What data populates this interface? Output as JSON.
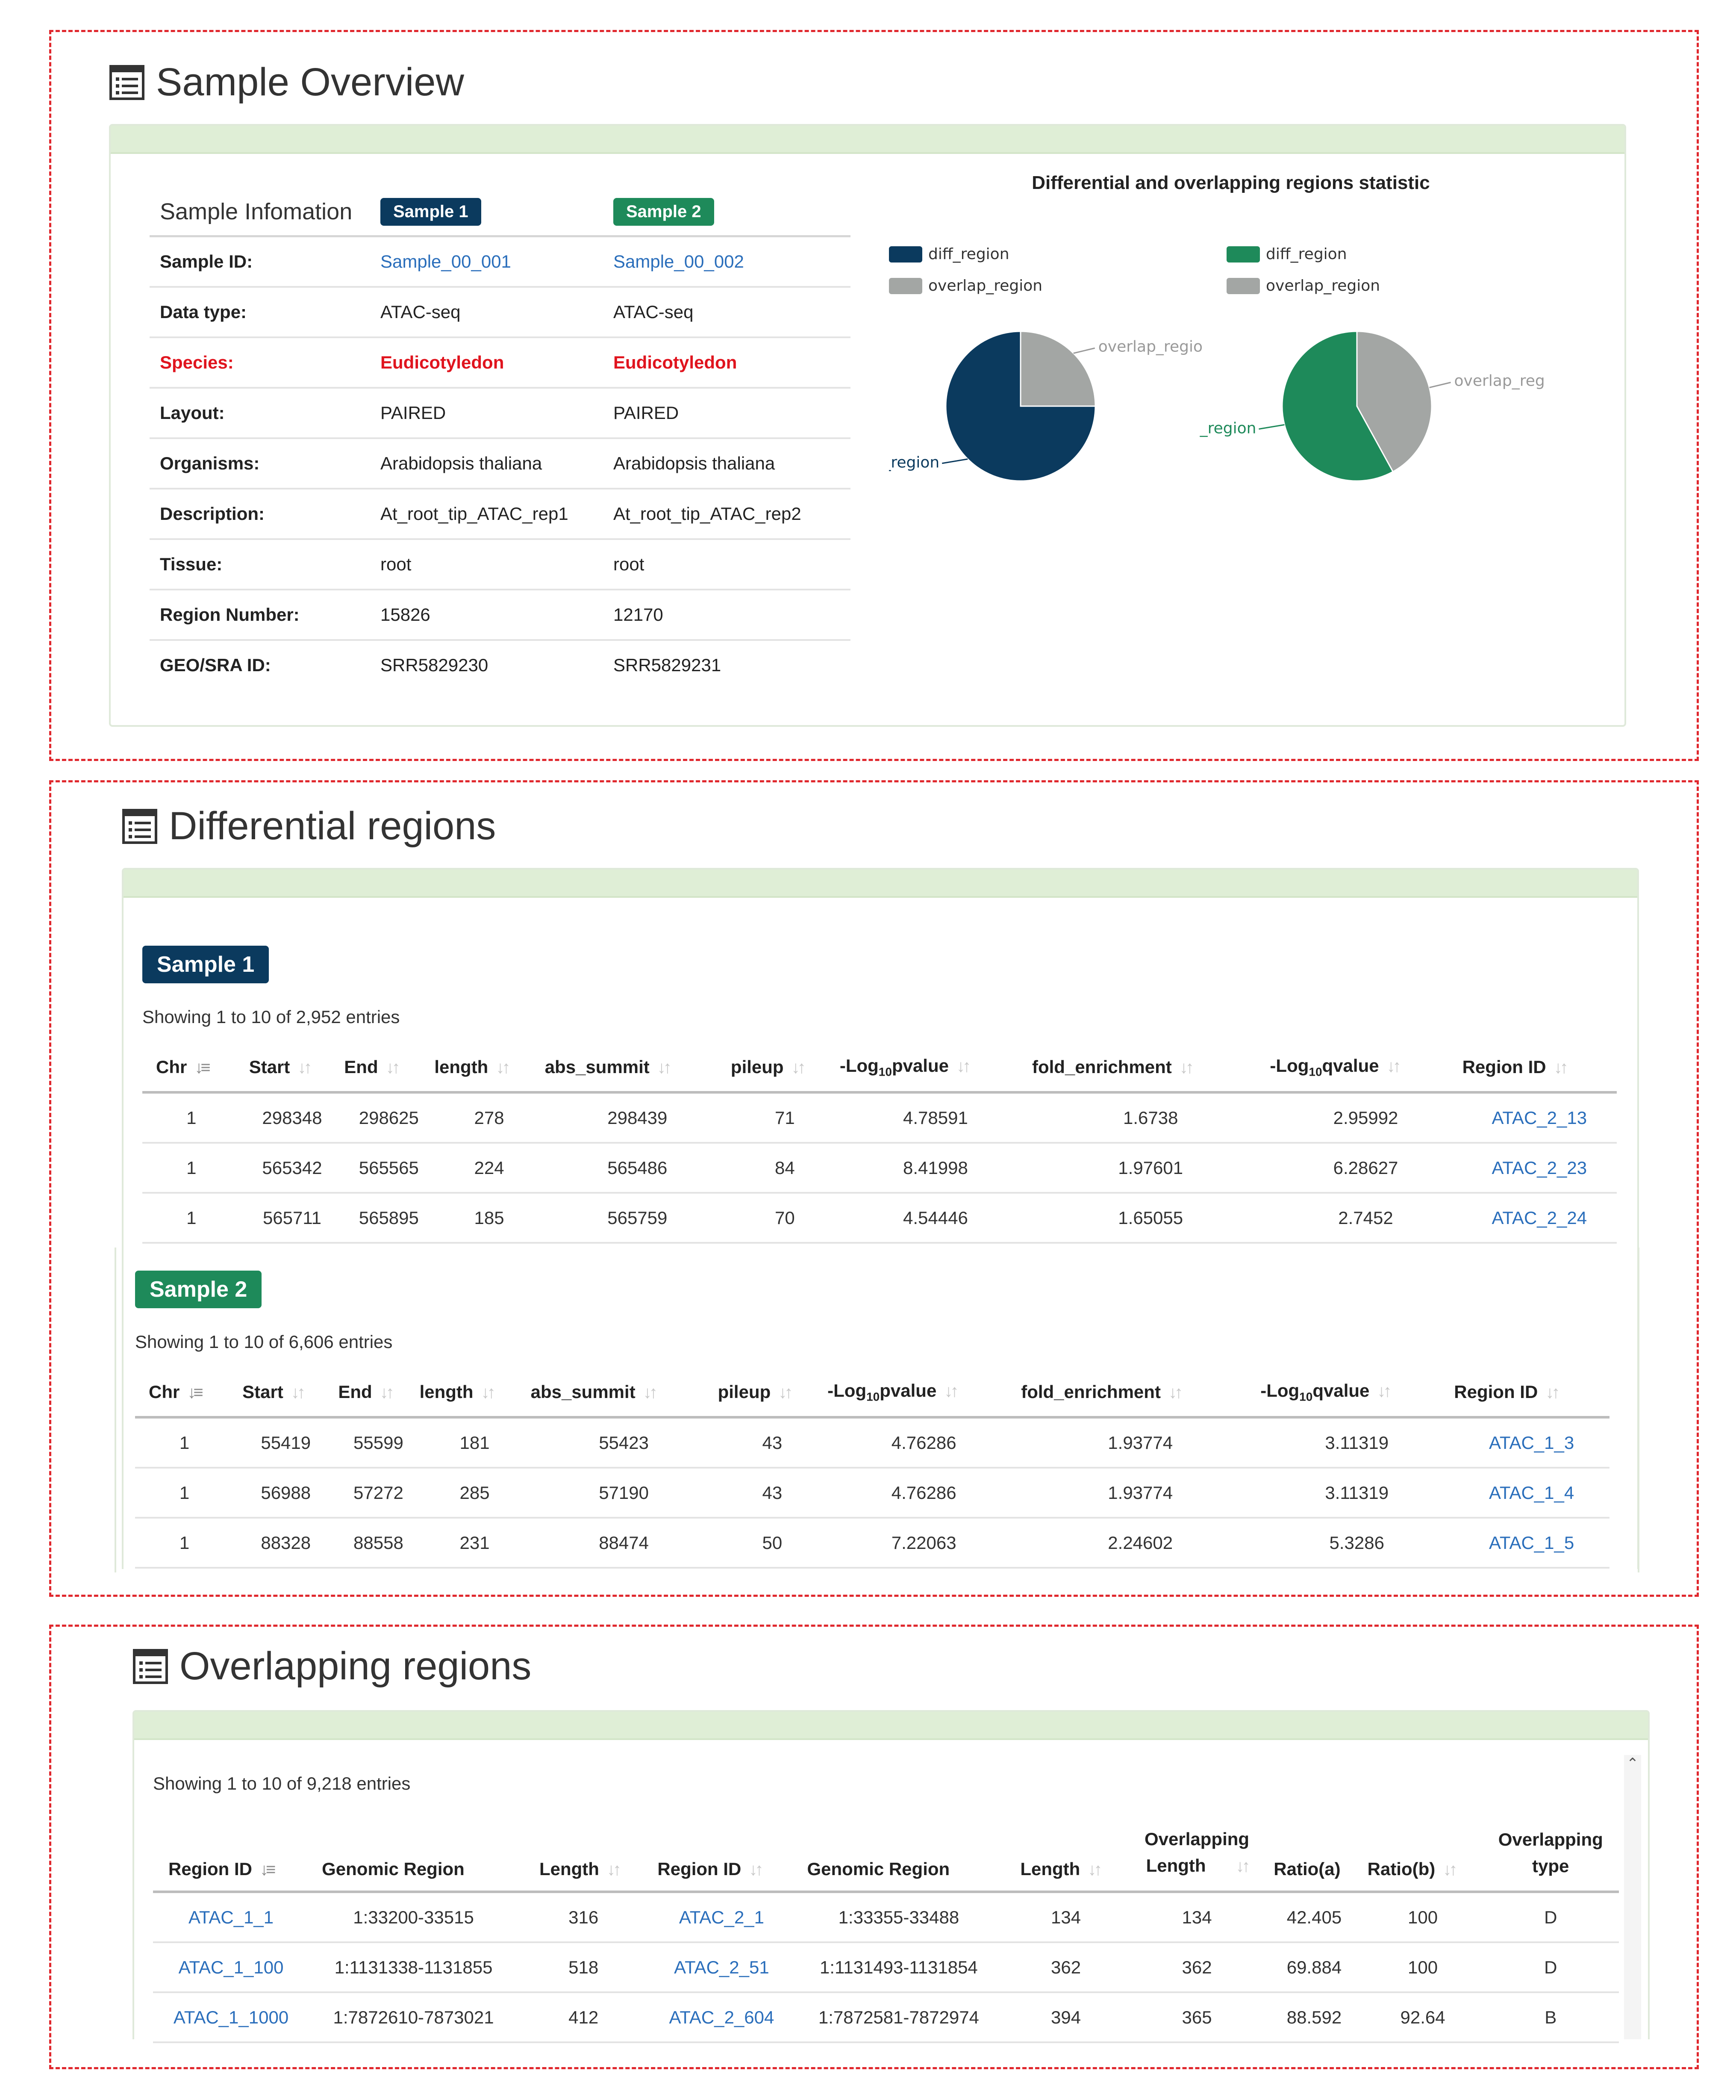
{
  "overview": {
    "title": "Sample Overview",
    "info_header": "Sample Infomation",
    "sample1_badge": "Sample 1",
    "sample2_badge": "Sample 2",
    "rows": [
      {
        "label": "Sample ID:",
        "s1": "Sample_00_001",
        "s2": "Sample_00_002"
      },
      {
        "label": "Data type:",
        "s1": "ATAC-seq",
        "s2": "ATAC-seq"
      },
      {
        "label": "Species:",
        "s1": "Eudicotyledon",
        "s2": "Eudicotyledon"
      },
      {
        "label": "Layout:",
        "s1": "PAIRED",
        "s2": "PAIRED"
      },
      {
        "label": "Organisms:",
        "s1": "Arabidopsis thaliana",
        "s2": "Arabidopsis thaliana"
      },
      {
        "label": "Description:",
        "s1": "At_root_tip_ATAC_rep1",
        "s2": "At_root_tip_ATAC_rep2"
      },
      {
        "label": "Tissue:",
        "s1": "root",
        "s2": "root"
      },
      {
        "label": "Region Number:",
        "s1": "15826",
        "s2": "12170"
      },
      {
        "label": "GEO/SRA ID:",
        "s1": "SRR5829230",
        "s2": "SRR5829231"
      }
    ],
    "chart_title": "Differential and overlapping regions statistic",
    "colors": {
      "sample1": "#0b3a5e",
      "sample2": "#1e8a5a",
      "overlap": "#a3a6a4"
    }
  },
  "chart_data": [
    {
      "type": "pie",
      "labels": [
        "diff_region",
        "overlap_region"
      ],
      "values": [
        75,
        25
      ],
      "legend": [
        "diff_region",
        "overlap_region"
      ],
      "callouts": [
        "iff_region",
        "overlap_regio"
      ]
    },
    {
      "type": "pie",
      "labels": [
        "diff_region",
        "overlap_region"
      ],
      "values": [
        58,
        42
      ],
      "legend": [
        "diff_region",
        "overlap_region"
      ],
      "callouts": [
        "_region",
        "overlap_reg"
      ]
    }
  ],
  "differential": {
    "title": "Differential regions",
    "columns": [
      "Chr",
      "Start",
      "End",
      "length",
      "abs_summit",
      "pileup",
      "-Log",
      "10",
      "pvalue",
      "fold_enrichment",
      "-Log",
      "10",
      "qvalue",
      "Region ID"
    ],
    "sample1": {
      "badge": "Sample 1",
      "showing": "Showing 1 to 10 of 2,952 entries",
      "rows": [
        [
          "1",
          "298348",
          "298625",
          "278",
          "298439",
          "71",
          "4.78591",
          "1.6738",
          "2.95992",
          "ATAC_2_13"
        ],
        [
          "1",
          "565342",
          "565565",
          "224",
          "565486",
          "84",
          "8.41998",
          "1.97601",
          "6.28627",
          "ATAC_2_23"
        ],
        [
          "1",
          "565711",
          "565895",
          "185",
          "565759",
          "70",
          "4.54446",
          "1.65055",
          "2.7452",
          "ATAC_2_24"
        ]
      ]
    },
    "sample2": {
      "badge": "Sample 2",
      "showing": "Showing 1 to 10 of 6,606 entries",
      "rows": [
        [
          "1",
          "55419",
          "55599",
          "181",
          "55423",
          "43",
          "4.76286",
          "1.93774",
          "3.11319",
          "ATAC_1_3"
        ],
        [
          "1",
          "56988",
          "57272",
          "285",
          "57190",
          "43",
          "4.76286",
          "1.93774",
          "3.11319",
          "ATAC_1_4"
        ],
        [
          "1",
          "88328",
          "88558",
          "231",
          "88474",
          "50",
          "7.22063",
          "2.24602",
          "5.3286",
          "ATAC_1_5"
        ]
      ]
    }
  },
  "overlapping": {
    "title": "Overlapping regions",
    "showing": "Showing 1 to 10 of 9,218 entries",
    "columns": [
      "Region ID",
      "Genomic Region",
      "Length",
      "Region ID",
      "Genomic Region",
      "Length",
      "Overlapping",
      "Length",
      "Ratio(a)",
      "Ratio(b)",
      "Overlapping",
      "type"
    ],
    "rows": [
      [
        "ATAC_1_1",
        "1:33200-33515",
        "316",
        "ATAC_2_1",
        "1:33355-33488",
        "134",
        "134",
        "42.405",
        "100",
        "D"
      ],
      [
        "ATAC_1_100",
        "1:1131338-1131855",
        "518",
        "ATAC_2_51",
        "1:1131493-1131854",
        "362",
        "362",
        "69.884",
        "100",
        "D"
      ],
      [
        "ATAC_1_1000",
        "1:7872610-7873021",
        "412",
        "ATAC_2_604",
        "1:7872581-7872974",
        "394",
        "365",
        "88.592",
        "92.64",
        "B"
      ]
    ]
  }
}
